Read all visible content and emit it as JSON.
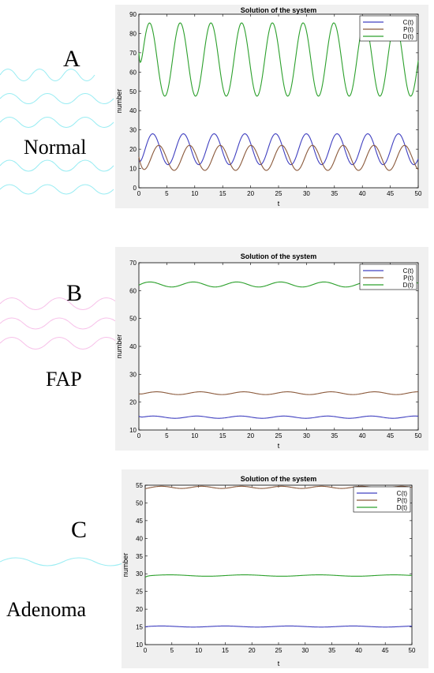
{
  "panels": [
    {
      "letter": "A",
      "label": "Normal"
    },
    {
      "letter": "B",
      "label": "FAP"
    },
    {
      "letter": "C",
      "label": "Adenoma"
    }
  ],
  "chart_data": [
    {
      "type": "line",
      "title": "Solution of the system",
      "xlabel": "t",
      "ylabel": "number",
      "xlim": [
        0,
        50
      ],
      "ylim": [
        0,
        90
      ],
      "xticks": [
        0,
        5,
        10,
        15,
        20,
        25,
        30,
        35,
        40,
        45,
        50
      ],
      "yticks": [
        0,
        10,
        20,
        30,
        40,
        50,
        60,
        70,
        80,
        90
      ],
      "legend": [
        "C(t)",
        "P(t)",
        "D(t)"
      ],
      "legend_position": "top-right",
      "grid": false,
      "series": [
        {
          "name": "C(t)",
          "color": "#4040c0",
          "start": 14,
          "mean": 20,
          "amplitude": 8,
          "period": 5.5,
          "phase": 1.25
        },
        {
          "name": "P(t)",
          "color": "#8b5a3c",
          "start": 16,
          "mean": 15.5,
          "amplitude": 6.5,
          "period": 5.5,
          "phase": 2.5
        },
        {
          "name": "D(t)",
          "color": "#2ca02c",
          "start": 70,
          "mean": 66.5,
          "amplitude": 19,
          "period": 5.5,
          "phase": 0.6
        }
      ]
    },
    {
      "type": "line",
      "title": "Solution of the system",
      "xlabel": "t",
      "ylabel": "number",
      "xlim": [
        0,
        50
      ],
      "ylim": [
        10,
        70
      ],
      "xticks": [
        0,
        5,
        10,
        15,
        20,
        25,
        30,
        35,
        40,
        45,
        50
      ],
      "yticks": [
        10,
        20,
        30,
        40,
        50,
        60,
        70
      ],
      "legend": [
        "C(t)",
        "P(t)",
        "D(t)"
      ],
      "legend_position": "top-right",
      "grid": false,
      "series": [
        {
          "name": "C(t)",
          "color": "#4040c0",
          "start": 15,
          "mean": 14.6,
          "amplitude": 0.4,
          "period": 7.8,
          "phase": 0.5
        },
        {
          "name": "P(t)",
          "color": "#8b5a3c",
          "start": 23,
          "mean": 23.2,
          "amplitude": 0.5,
          "period": 7.8,
          "phase": 1.0
        },
        {
          "name": "D(t)",
          "color": "#2ca02c",
          "start": 62,
          "mean": 62.2,
          "amplitude": 0.9,
          "period": 7.8,
          "phase": 0.0
        }
      ]
    },
    {
      "type": "line",
      "title": "Solution of the system",
      "xlabel": "t",
      "ylabel": "number",
      "xlim": [
        0,
        50
      ],
      "ylim": [
        10,
        55
      ],
      "xticks": [
        0,
        5,
        10,
        15,
        20,
        25,
        30,
        35,
        40,
        45,
        50
      ],
      "yticks": [
        10,
        15,
        20,
        25,
        30,
        35,
        40,
        45,
        50,
        55
      ],
      "legend": [
        "C(t)",
        "P(t)",
        "D(t)"
      ],
      "legend_position": "top-right",
      "grid": false,
      "series": [
        {
          "name": "C(t)",
          "color": "#4040c0",
          "start": 15,
          "mean": 15.1,
          "amplitude": 0.15,
          "period": 12,
          "phase": 0.0
        },
        {
          "name": "P(t)",
          "color": "#8b5a3c",
          "start": 54,
          "mean": 54.4,
          "amplitude": 0.3,
          "period": 7.5,
          "phase": 1.0
        },
        {
          "name": "D(t)",
          "color": "#2ca02c",
          "start": 29,
          "mean": 29.5,
          "amplitude": 0.2,
          "period": 14,
          "phase": 0.5
        }
      ]
    }
  ]
}
